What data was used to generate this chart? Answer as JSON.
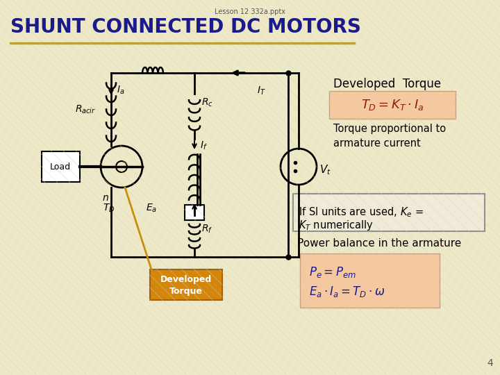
{
  "title": "SHUNT CONNECTED DC MOTORS",
  "subtitle": "Lesson 12 332a.pptx",
  "bg_color": "#ede8c8",
  "title_color": "#1a1a8c",
  "title_underline_color": "#c8a020",
  "text_color": "#1a1a1a",
  "page_num": "4",
  "developed_torque_label": "Developed  Torque",
  "formula_td_bg": "#f5c8a0",
  "formula_power_bg": "#f5c8a0",
  "torque_box_bg": "#d4860a",
  "torque_box_text": "Developed\nTorque",
  "si_box_text": "If SI units are used, $K_e$ =\n$K_T$ numerically",
  "power_label": "Power balance in the armature",
  "torque_prop_text": "Torque proportional to\narmature current"
}
